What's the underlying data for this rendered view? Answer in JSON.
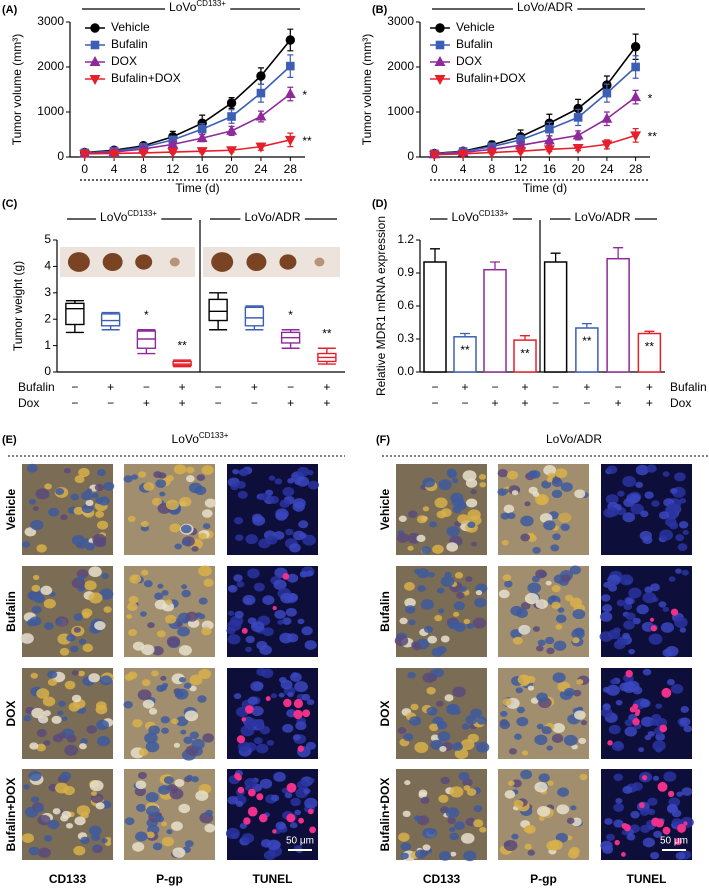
{
  "chart_data": [
    {
      "type": "line",
      "panel": "(A)",
      "title": "LoVo",
      "title_superscript": "CD133+",
      "xlabel": "Time (d)",
      "ylabel": "Tumor volume (mm³)",
      "x": [
        0,
        4,
        8,
        12,
        16,
        20,
        24,
        28
      ],
      "xlim": [
        -2,
        30
      ],
      "xticks": [
        0,
        4,
        8,
        12,
        16,
        20,
        24,
        28
      ],
      "ylim": [
        0,
        3000
      ],
      "yticks": [
        0,
        1000,
        2000,
        3000
      ],
      "series": [
        {
          "name": "Vehicle",
          "color": "#000000",
          "marker": "circle",
          "values": [
            100,
            150,
            250,
            450,
            750,
            1200,
            1800,
            2600
          ],
          "errors": [
            30,
            40,
            70,
            120,
            180,
            120,
            180,
            240
          ]
        },
        {
          "name": "Bufalin",
          "color": "#3c5fb5",
          "marker": "square",
          "values": [
            90,
            130,
            220,
            380,
            620,
            900,
            1420,
            2020
          ],
          "errors": [
            20,
            30,
            50,
            80,
            120,
            150,
            200,
            250
          ]
        },
        {
          "name": "DOX",
          "color": "#8e2a99",
          "marker": "triangle-up",
          "values": [
            80,
            110,
            180,
            280,
            420,
            580,
            900,
            1400
          ],
          "errors": [
            20,
            20,
            40,
            60,
            80,
            100,
            120,
            150
          ],
          "annotation": "*"
        },
        {
          "name": "Bufalin+DOX",
          "color": "#e5202a",
          "marker": "triangle-down",
          "values": [
            70,
            80,
            90,
            110,
            130,
            150,
            230,
            380
          ],
          "errors": [
            10,
            10,
            20,
            30,
            40,
            40,
            80,
            150
          ],
          "annotation": "**"
        }
      ]
    },
    {
      "type": "line",
      "panel": "(B)",
      "title": "LoVo/ADR",
      "xlabel": "Time (d)",
      "ylabel": "Tumor volume (mm³)",
      "x": [
        0,
        4,
        8,
        12,
        16,
        20,
        24,
        28
      ],
      "xlim": [
        -2,
        30
      ],
      "xticks": [
        0,
        4,
        8,
        12,
        16,
        20,
        24,
        28
      ],
      "ylim": [
        0,
        3000
      ],
      "yticks": [
        0,
        1000,
        2000,
        3000
      ],
      "series": [
        {
          "name": "Vehicle",
          "color": "#000000",
          "marker": "circle",
          "values": [
            80,
            130,
            270,
            450,
            750,
            1080,
            1600,
            2450
          ],
          "errors": [
            20,
            30,
            80,
            150,
            200,
            200,
            200,
            280
          ]
        },
        {
          "name": "Bufalin",
          "color": "#3c5fb5",
          "marker": "square",
          "values": [
            70,
            120,
            230,
            380,
            620,
            880,
            1420,
            2000
          ],
          "errors": [
            20,
            30,
            60,
            100,
            150,
            180,
            200,
            250
          ]
        },
        {
          "name": "DOX",
          "color": "#8e2a99",
          "marker": "triangle-up",
          "values": [
            60,
            100,
            170,
            260,
            370,
            480,
            850,
            1330
          ],
          "errors": [
            20,
            30,
            50,
            80,
            100,
            100,
            150,
            150
          ],
          "annotation": "*"
        },
        {
          "name": "Bufalin+DOX",
          "color": "#e5202a",
          "marker": "triangle-down",
          "values": [
            50,
            70,
            100,
            130,
            170,
            200,
            280,
            480
          ],
          "errors": [
            10,
            20,
            30,
            40,
            50,
            60,
            100,
            150
          ],
          "annotation": "**"
        }
      ]
    },
    {
      "type": "box",
      "panel": "(C)",
      "ylabel": "Tumor weight (g)",
      "ylim": [
        0,
        5
      ],
      "yticks": [
        0,
        1,
        2,
        3,
        4,
        5
      ],
      "colors": [
        "#000000",
        "#3c5fb5",
        "#8e2a99",
        "#e5202a"
      ],
      "groups": [
        {
          "title": "LoVo",
          "title_superscript": "CD133+",
          "boxes": [
            [
              1.5,
              1.8,
              2.4,
              2.6,
              2.7
            ],
            [
              1.6,
              1.75,
              1.95,
              2.2,
              2.25
            ],
            [
              0.7,
              0.9,
              1.25,
              1.55,
              1.6
            ],
            [
              0.2,
              0.25,
              0.3,
              0.4,
              0.45
            ]
          ],
          "annotations": [
            null,
            null,
            "*",
            "**"
          ]
        },
        {
          "title": "LoVo/ADR",
          "boxes": [
            [
              1.6,
              1.95,
              2.3,
              2.75,
              3.0
            ],
            [
              1.6,
              1.75,
              2.05,
              2.45,
              2.5
            ],
            [
              0.9,
              1.1,
              1.3,
              1.5,
              1.6
            ],
            [
              0.3,
              0.4,
              0.55,
              0.7,
              0.9
            ]
          ],
          "annotations": [
            null,
            null,
            "*",
            "**"
          ]
        }
      ],
      "conditions": [
        {
          "label": "Bufalin",
          "values": [
            "−",
            "+",
            "−",
            "+",
            "−",
            "+",
            "−",
            "+"
          ]
        },
        {
          "label": "Dox",
          "values": [
            "−",
            "−",
            "+",
            "+",
            "−",
            "−",
            "+",
            "+"
          ]
        }
      ]
    },
    {
      "type": "bar",
      "panel": "(D)",
      "ylabel": "Relative MDR1 mRNA expression",
      "ylim": [
        0,
        1.2
      ],
      "yticks": [
        {
          "value": 0,
          "label": "0.0"
        },
        0.3,
        0.6,
        0.9,
        1.2
      ],
      "colors": [
        "#000000",
        "#3c5fb5",
        "#8e2a99",
        "#e5202a"
      ],
      "groups": [
        {
          "title": "LoVo",
          "title_superscript": "CD133+",
          "values": [
            1.0,
            0.32,
            0.93,
            0.29
          ],
          "errors": [
            0.12,
            0.03,
            0.07,
            0.04
          ],
          "annotations": [
            null,
            "**",
            null,
            "**"
          ]
        },
        {
          "title": "LoVo/ADR",
          "values": [
            1.0,
            0.4,
            1.03,
            0.35
          ],
          "errors": [
            0.08,
            0.04,
            0.1,
            0.02
          ],
          "annotations": [
            null,
            "**",
            null,
            "**"
          ]
        }
      ],
      "conditions": [
        {
          "label": "Bufalin",
          "values": [
            "−",
            "+",
            "−",
            "+",
            "−",
            "+",
            "−",
            "+"
          ]
        },
        {
          "label": "Dox",
          "values": [
            "−",
            "−",
            "+",
            "+",
            "−",
            "−",
            "+",
            "+"
          ]
        }
      ]
    }
  ],
  "image_panels": [
    {
      "panel": "(E)",
      "title": "LoVo",
      "title_superscript": "CD133+",
      "rows": [
        "Vehicle",
        "Bufalin",
        "DOX",
        "Bufalin+DOX"
      ],
      "columns": [
        "CD133",
        "P-gp",
        "TUNEL"
      ],
      "scale_bar": "50 μm"
    },
    {
      "panel": "(F)",
      "title": "LoVo/ADR",
      "rows": [
        "Vehicle",
        "Bufalin",
        "DOX",
        "Bufalin+DOX"
      ],
      "columns": [
        "CD133",
        "P-gp",
        "TUNEL"
      ],
      "scale_bar": "50 μm"
    }
  ]
}
